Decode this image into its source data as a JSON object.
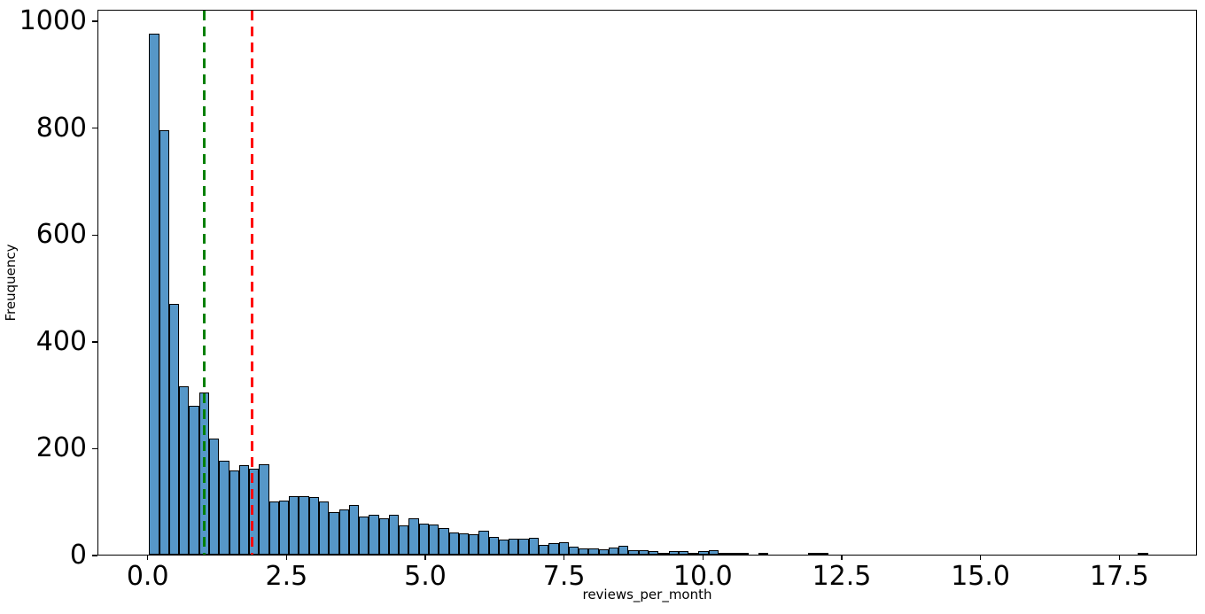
{
  "chart_data": {
    "type": "bar",
    "subtype": "histogram",
    "title": "",
    "xlabel": "reviews_per_month",
    "ylabel": "Freuquency",
    "bin_start": 0.01,
    "bin_width": 0.1799,
    "values": [
      975,
      795,
      470,
      315,
      278,
      304,
      217,
      175,
      158,
      167,
      161,
      169,
      100,
      102,
      110,
      110,
      107,
      99,
      80,
      84,
      93,
      72,
      74,
      68,
      75,
      55,
      68,
      58,
      56,
      50,
      41,
      40,
      38,
      44,
      33,
      29,
      30,
      30,
      31,
      19,
      21,
      23,
      15,
      11,
      12,
      10,
      14,
      16,
      8,
      8,
      7,
      4,
      6,
      7,
      4,
      6,
      8,
      3,
      2,
      3,
      0,
      1,
      0,
      0,
      0,
      0,
      3,
      3,
      0,
      0,
      0,
      0,
      0,
      0,
      0,
      0,
      0,
      0,
      0,
      0,
      0,
      0,
      0,
      0,
      0,
      0,
      0,
      0,
      0,
      0,
      0,
      0,
      0,
      0,
      0,
      0,
      0,
      0,
      0,
      3
    ],
    "xlim": [
      -0.905,
      18.9
    ],
    "ylim": [
      0,
      1021.6
    ],
    "x_ticks": [
      0.0,
      2.5,
      5.0,
      7.5,
      10.0,
      12.5,
      15.0,
      17.5
    ],
    "x_tick_labels": [
      "0.0",
      "2.5",
      "5.0",
      "7.5",
      "10.0",
      "12.5",
      "15.0",
      "17.5"
    ],
    "y_ticks": [
      0,
      200,
      400,
      600,
      800,
      1000
    ],
    "y_tick_labels": [
      "0",
      "200",
      "400",
      "600",
      "800",
      "1000"
    ],
    "grid": false,
    "legend": null,
    "bar_color": "#5697c8",
    "bar_edge_color": "#000000",
    "vlines": [
      {
        "x": 1.0,
        "color": "#008000",
        "style": "dashed",
        "name": "vline-green-dashed"
      },
      {
        "x": 1.87,
        "color": "#ff0000",
        "style": "dashed",
        "name": "vline-red-dashed"
      }
    ]
  }
}
